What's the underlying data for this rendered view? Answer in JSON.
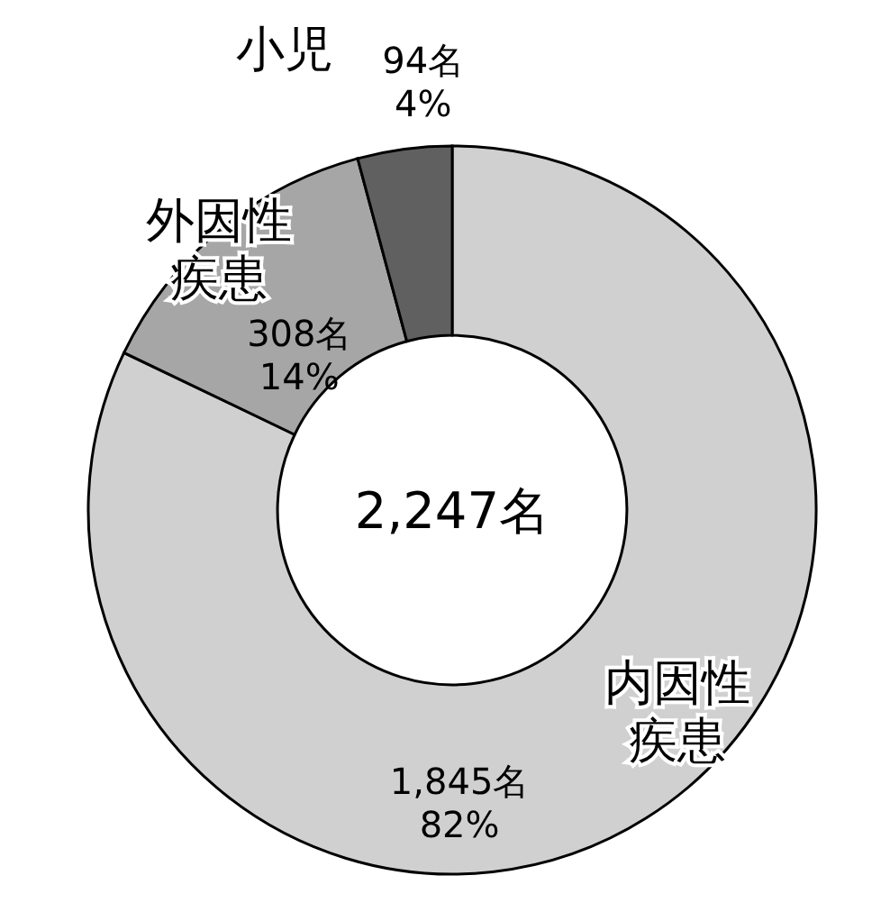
{
  "chart_data": {
    "type": "donut",
    "categories": [
      "内因性疾患",
      "外因性疾患",
      "小児"
    ],
    "values": [
      1845,
      308,
      94
    ],
    "colors": [
      "#d0d0d0",
      "#a6a6a6",
      "#606060"
    ],
    "value_labels": [
      "1,845名 82%",
      "308名 14%",
      "94名 4%"
    ],
    "annotations": [
      "2,247名"
    ]
  }
}
